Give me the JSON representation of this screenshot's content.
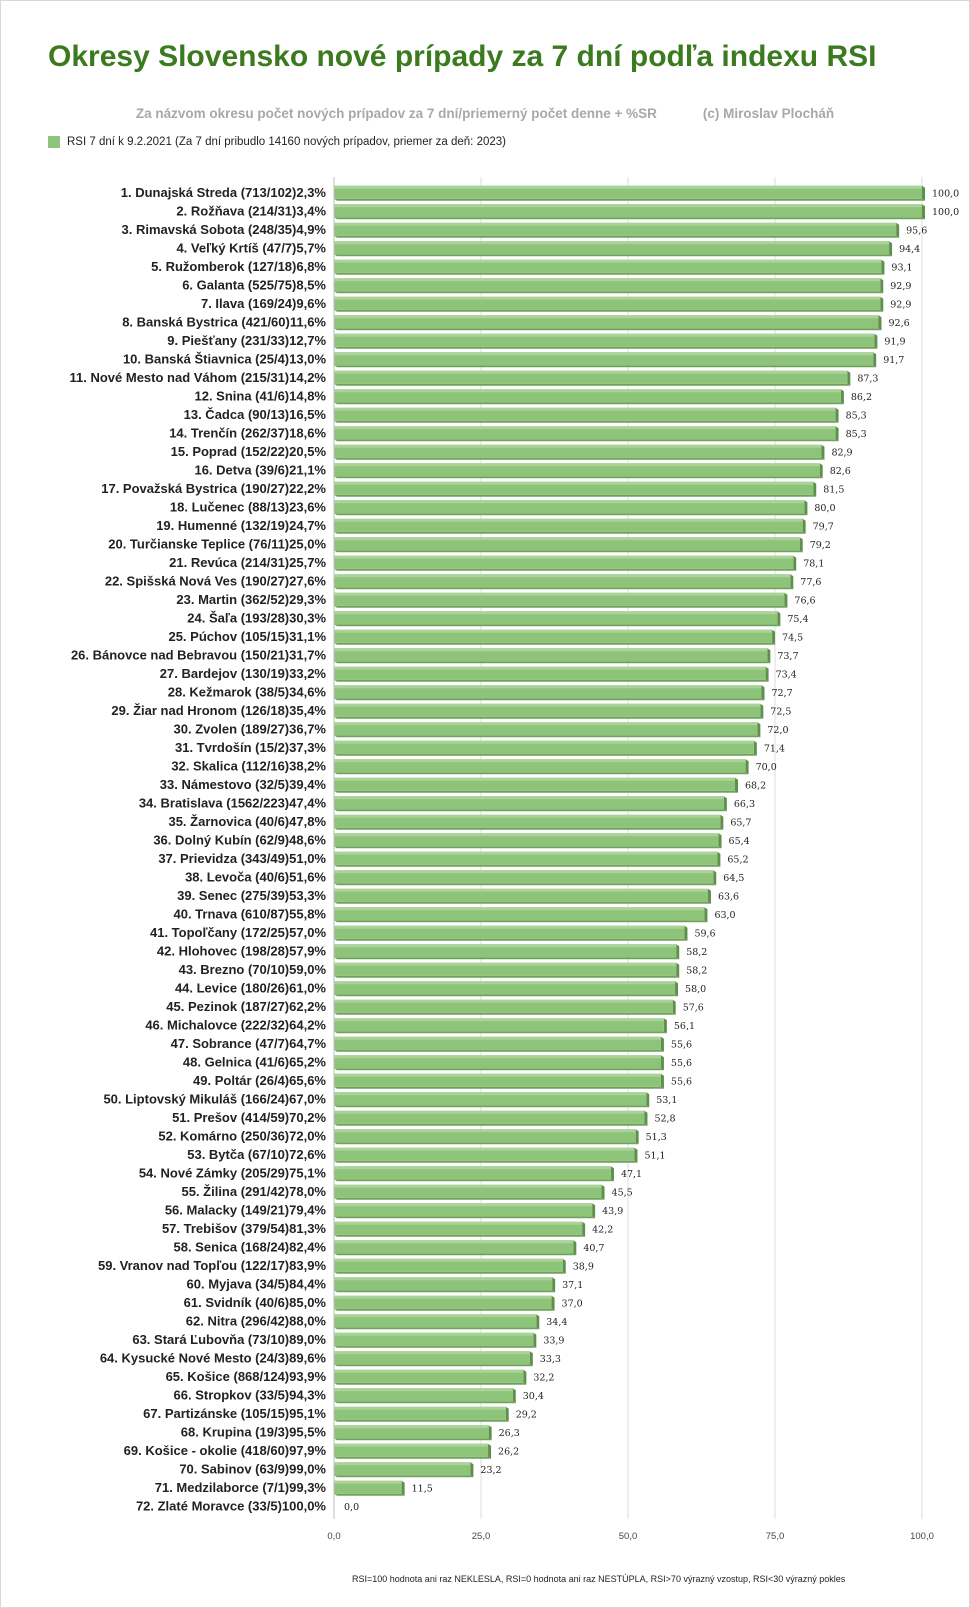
{
  "chart_data": {
    "type": "bar",
    "orientation": "horizontal",
    "title": "Okresy Slovensko nové prípady za 7 dní podľa indexu RSI",
    "subtitle": "Za názvom okresu počet nových prípadov za 7 dní/priemerný počet denne  + %SR",
    "author": "(c) Miroslav Plocháň",
    "legend": "RSI 7 dní k 9.2.2021 (Za 7 dní pribudlo 14160 nových prípadov, priemer za deň: 2023)",
    "footnote": "RSI=100 hodnota ani raz NEKLESLA, RSI=0 hodnota ani raz NESTÚPLA, RSI>70 výrazný vzostup, RSI<30 výrazný pokles",
    "bar_color": "#8ec37a",
    "xlim": [
      0,
      100
    ],
    "xticks": [
      "0,0",
      "25,0",
      "50,0",
      "75,0",
      "100,0"
    ],
    "grid": true,
    "categories": [
      "1. Dunajská Streda (713/102)2,3%",
      "2. Rožňava (214/31)3,4%",
      "3. Rimavská Sobota (248/35)4,9%",
      "4. Veľký Krtíš (47/7)5,7%",
      "5. Ružomberok (127/18)6,8%",
      "6. Galanta (525/75)8,5%",
      "7. Ilava (169/24)9,6%",
      "8. Banská Bystrica (421/60)11,6%",
      "9. Piešťany (231/33)12,7%",
      "10. Banská Štiavnica (25/4)13,0%",
      "11. Nové Mesto nad Váhom (215/31)14,2%",
      "12. Snina (41/6)14,8%",
      "13. Čadca (90/13)16,5%",
      "14. Trenčín (262/37)18,6%",
      "15. Poprad (152/22)20,5%",
      "16. Detva (39/6)21,1%",
      "17. Považská Bystrica (190/27)22,2%",
      "18. Lučenec (88/13)23,6%",
      "19. Humenné (132/19)24,7%",
      "20. Turčianske Teplice (76/11)25,0%",
      "21. Revúca (214/31)25,7%",
      "22. Spišská Nová Ves (190/27)27,6%",
      "23. Martin (362/52)29,3%",
      "24. Šaľa (193/28)30,3%",
      "25. Púchov (105/15)31,1%",
      "26. Bánovce nad Bebravou (150/21)31,7%",
      "27. Bardejov (130/19)33,2%",
      "28. Kežmarok (38/5)34,6%",
      "29. Žiar nad Hronom (126/18)35,4%",
      "30. Zvolen (189/27)36,7%",
      "31. Tvrdošín (15/2)37,3%",
      "32. Skalica (112/16)38,2%",
      "33. Námestovo (32/5)39,4%",
      "34. Bratislava (1562/223)47,4%",
      "35. Žarnovica (40/6)47,8%",
      "36. Dolný Kubín (62/9)48,6%",
      "37. Prievidza (343/49)51,0%",
      "38. Levoča (40/6)51,6%",
      "39. Senec (275/39)53,3%",
      "40. Trnava (610/87)55,8%",
      "41. Topoľčany (172/25)57,0%",
      "42. Hlohovec (198/28)57,9%",
      "43. Brezno (70/10)59,0%",
      "44. Levice (180/26)61,0%",
      "45. Pezinok (187/27)62,2%",
      "46. Michalovce (222/32)64,2%",
      "47. Sobrance (47/7)64,7%",
      "48. Gelnica (41/6)65,2%",
      "49. Poltár (26/4)65,6%",
      "50. Liptovský Mikuláš (166/24)67,0%",
      "51. Prešov (414/59)70,2%",
      "52. Komárno (250/36)72,0%",
      "53. Bytča (67/10)72,6%",
      "54. Nové Zámky (205/29)75,1%",
      "55. Žilina (291/42)78,0%",
      "56. Malacky (149/21)79,4%",
      "57. Trebišov (379/54)81,3%",
      "58. Senica (168/24)82,4%",
      "59. Vranov nad Topľou (122/17)83,9%",
      "60. Myjava (34/5)84,4%",
      "61. Svidník (40/6)85,0%",
      "62. Nitra (296/42)88,0%",
      "63. Stará Ľubovňa (73/10)89,0%",
      "64. Kysucké Nové Mesto (24/3)89,6%",
      "65. Košice (868/124)93,9%",
      "66. Stropkov (33/5)94,3%",
      "67. Partizánske (105/15)95,1%",
      "68. Krupina (19/3)95,5%",
      "69. Košice - okolie (418/60)97,9%",
      "70. Sabinov (63/9)99,0%",
      "71. Medzilaborce (7/1)99,3%",
      "72. Zlaté Moravce (33/5)100,0%"
    ],
    "values": [
      100.0,
      100.0,
      95.6,
      94.4,
      93.1,
      92.9,
      92.9,
      92.6,
      91.9,
      91.7,
      87.3,
      86.2,
      85.3,
      85.3,
      82.9,
      82.6,
      81.5,
      80.0,
      79.7,
      79.2,
      78.1,
      77.6,
      76.6,
      75.4,
      74.5,
      73.7,
      73.4,
      72.7,
      72.5,
      72.0,
      71.4,
      70.0,
      68.2,
      66.3,
      65.7,
      65.4,
      65.2,
      64.5,
      63.6,
      63.0,
      59.6,
      58.2,
      58.2,
      58.0,
      57.6,
      56.1,
      55.6,
      55.6,
      55.6,
      53.1,
      52.8,
      51.3,
      51.1,
      47.1,
      45.5,
      43.9,
      42.2,
      40.7,
      38.9,
      37.1,
      37.0,
      34.4,
      33.9,
      33.3,
      32.2,
      30.4,
      29.2,
      26.3,
      26.2,
      23.2,
      11.5,
      0.0
    ],
    "value_labels": [
      "100,0",
      "100,0",
      "95,6",
      "94,4",
      "93,1",
      "92,9",
      "92,9",
      "92,6",
      "91,9",
      "91,7",
      "87,3",
      "86,2",
      "85,3",
      "85,3",
      "82,9",
      "82,6",
      "81,5",
      "80,0",
      "79,7",
      "79,2",
      "78,1",
      "77,6",
      "76,6",
      "75,4",
      "74,5",
      "73,7",
      "73,4",
      "72,7",
      "72,5",
      "72,0",
      "71,4",
      "70,0",
      "68,2",
      "66,3",
      "65,7",
      "65,4",
      "65,2",
      "64,5",
      "63,6",
      "63,0",
      "59,6",
      "58,2",
      "58,2",
      "58,0",
      "57,6",
      "56,1",
      "55,6",
      "55,6",
      "55,6",
      "53,1",
      "52,8",
      "51,3",
      "51,1",
      "47,1",
      "45,5",
      "43,9",
      "42,2",
      "40,7",
      "38,9",
      "37,1",
      "37,0",
      "34,4",
      "33,9",
      "33,3",
      "32,2",
      "30,4",
      "29,2",
      "26,3",
      "26,2",
      "23,2",
      "11,5",
      "0,0"
    ]
  }
}
